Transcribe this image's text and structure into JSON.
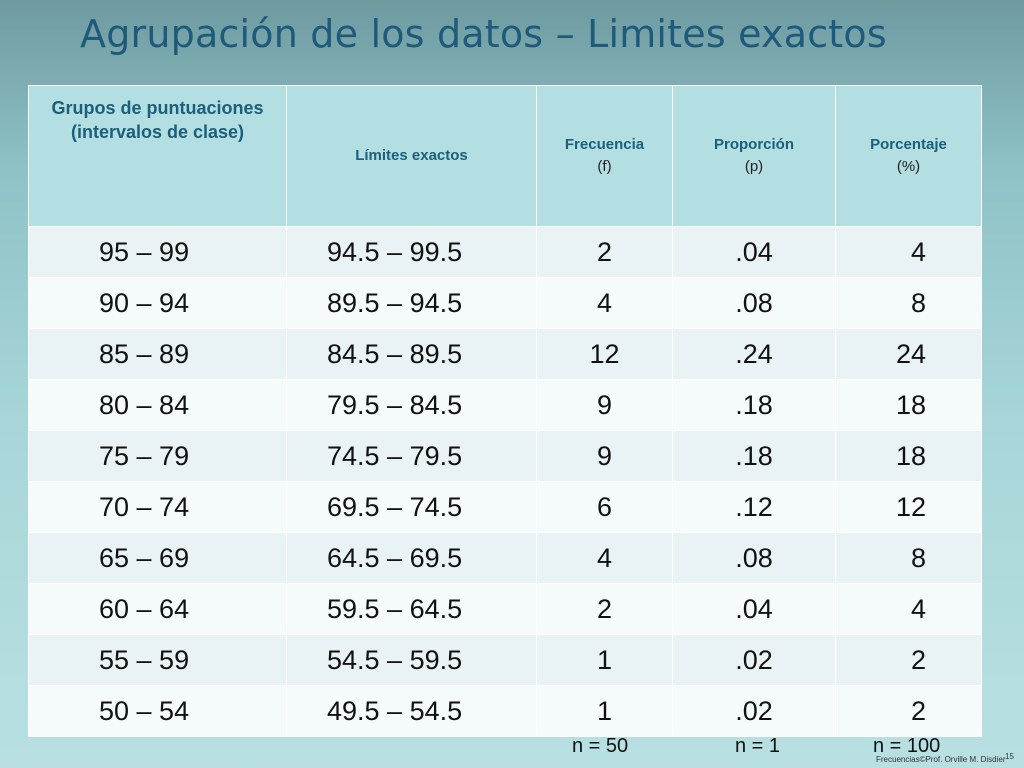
{
  "slide": {
    "title": "Agrupación de los datos – Limites exactos"
  },
  "table": {
    "headers": {
      "groups": "Grupos de puntuaciones (intervalos de clase)",
      "limits": "Límites exactos",
      "freq_label": "Frecuencia",
      "freq_symbol": "(f)",
      "prop_label": "Proporción",
      "prop_symbol": "(p)",
      "pct_label": "Porcentaje",
      "pct_symbol": "(%)"
    },
    "rows": [
      {
        "group": "95 – 99",
        "limits": "94.5 – 99.5",
        "freq": "2",
        "prop": ".04",
        "pct": "4"
      },
      {
        "group": "90 – 94",
        "limits": "89.5 – 94.5",
        "freq": "4",
        "prop": ".08",
        "pct": "8"
      },
      {
        "group": "85 – 89",
        "limits": "84.5 – 89.5",
        "freq": "12",
        "prop": ".24",
        "pct": "24"
      },
      {
        "group": "80 – 84",
        "limits": "79.5 – 84.5",
        "freq": "9",
        "prop": ".18",
        "pct": "18"
      },
      {
        "group": "75 – 79",
        "limits": "74.5 – 79.5",
        "freq": "9",
        "prop": ".18",
        "pct": "18"
      },
      {
        "group": "70 – 74",
        "limits": "69.5 – 74.5",
        "freq": "6",
        "prop": ".12",
        "pct": "12"
      },
      {
        "group": "65 – 69",
        "limits": "64.5 – 69.5",
        "freq": "4",
        "prop": ".08",
        "pct": "8"
      },
      {
        "group": "60 – 64",
        "limits": "59.5 – 64.5",
        "freq": "2",
        "prop": ".04",
        "pct": "4"
      },
      {
        "group": "55 – 59",
        "limits": "54.5 – 59.5",
        "freq": "1",
        "prop": ".02",
        "pct": "2"
      },
      {
        "group": "50 – 54",
        "limits": "49.5 – 54.5",
        "freq": "1",
        "prop": ".02",
        "pct": "2"
      }
    ]
  },
  "totals": {
    "freq": "n = 50",
    "prop": "n = 1",
    "pct": "n = 100"
  },
  "footer": {
    "credit": "Frecuencias©Prof. Orville M. Disdier",
    "page_number": "15"
  }
}
